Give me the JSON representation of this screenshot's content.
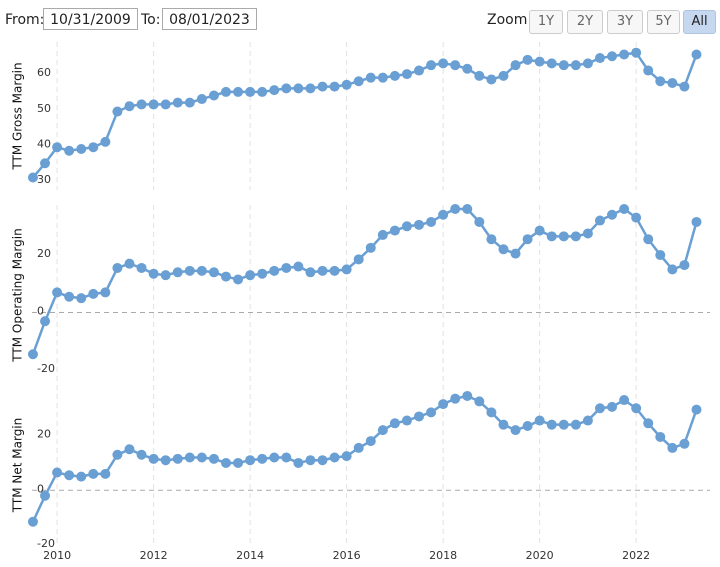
{
  "controls": {
    "from_label": "From:",
    "from": "10/31/2009",
    "to_label": "To:",
    "to": "08/01/2023",
    "zoom_label": "Zoom:",
    "zoom_buttons": [
      "1Y",
      "2Y",
      "3Y",
      "5Y",
      "All"
    ],
    "active": "All"
  },
  "chart_data": [
    {
      "type": "line",
      "ylabel": "TTM Gross Margin",
      "color": "#6a9fd4",
      "x": [
        2009.5,
        2009.75,
        2010,
        2010.25,
        2010.5,
        2010.75,
        2011,
        2011.25,
        2011.5,
        2011.75,
        2012,
        2012.25,
        2012.5,
        2012.75,
        2013,
        2013.25,
        2013.5,
        2013.75,
        2014,
        2014.25,
        2014.5,
        2014.75,
        2015,
        2015.25,
        2015.5,
        2015.75,
        2016,
        2016.25,
        2016.5,
        2016.75,
        2017,
        2017.25,
        2017.5,
        2017.75,
        2018,
        2018.25,
        2018.5,
        2018.75,
        2019,
        2019.25,
        2019.5,
        2019.75,
        2020,
        2020.25,
        2020.5,
        2020.75,
        2021,
        2021.25,
        2021.5,
        2021.75,
        2022,
        2022.25,
        2022.5,
        2022.75,
        2023,
        2023.25
      ],
      "values": [
        31,
        35,
        39.5,
        38.5,
        39,
        39.5,
        41,
        49.5,
        51,
        51.5,
        51.5,
        51.5,
        52,
        52,
        53,
        54,
        55,
        55,
        55,
        55,
        55.5,
        56,
        56,
        56,
        56.5,
        56.5,
        57,
        58,
        59,
        59,
        59.5,
        60,
        61,
        62.5,
        63,
        62.5,
        61.5,
        59.5,
        58.5,
        59.5,
        62.5,
        64,
        63.5,
        63,
        62.5,
        62.5,
        63,
        64.5,
        65,
        65.5,
        66,
        61,
        58,
        57.5,
        56.5,
        65.5
      ],
      "xlim": [
        2009.48,
        2023.53
      ],
      "xticks": [
        2010,
        2012,
        2014,
        2016,
        2018,
        2020,
        2022
      ],
      "ylim": [
        27.5,
        69
      ],
      "yticks": [
        30,
        40,
        50,
        60
      ]
    },
    {
      "type": "line",
      "ylabel": "TTM Operating Margin",
      "color": "#6a9fd4",
      "x": [
        2009.5,
        2009.75,
        2010,
        2010.25,
        2010.5,
        2010.75,
        2011,
        2011.25,
        2011.5,
        2011.75,
        2012,
        2012.25,
        2012.5,
        2012.75,
        2013,
        2013.25,
        2013.5,
        2013.75,
        2014,
        2014.25,
        2014.5,
        2014.75,
        2015,
        2015.25,
        2015.5,
        2015.75,
        2016,
        2016.25,
        2016.5,
        2016.75,
        2017,
        2017.25,
        2017.5,
        2017.75,
        2018,
        2018.25,
        2018.5,
        2018.75,
        2019,
        2019.25,
        2019.5,
        2019.75,
        2020,
        2020.25,
        2020.5,
        2020.75,
        2021,
        2021.25,
        2021.5,
        2021.75,
        2022,
        2022.25,
        2022.5,
        2022.75,
        2023,
        2023.25
      ],
      "values": [
        -14.5,
        -3,
        7,
        5.5,
        5,
        6.5,
        7,
        15.5,
        17,
        15.5,
        13.5,
        13,
        14,
        14.5,
        14.5,
        14,
        12.5,
        11.5,
        13,
        13.5,
        14.5,
        15.5,
        16,
        14,
        14.5,
        14.5,
        15,
        18.5,
        22.5,
        27,
        28.5,
        30,
        30.5,
        31.5,
        34,
        36,
        36,
        31.5,
        25.5,
        22,
        20.5,
        25.5,
        28.5,
        26.5,
        26.5,
        26.5,
        27.5,
        32,
        34,
        36,
        33,
        25.5,
        20,
        15,
        16.5,
        31.5
      ],
      "xlim": [
        2009.48,
        2023.53
      ],
      "xticks": [
        2010,
        2012,
        2014,
        2016,
        2018,
        2020,
        2022
      ],
      "ylim": [
        -25.2,
        37.4
      ],
      "yticks": [
        -20,
        0,
        20
      ]
    },
    {
      "type": "line",
      "ylabel": "TTM Net Margin",
      "color": "#6a9fd4",
      "x": [
        2009.5,
        2009.75,
        2010,
        2010.25,
        2010.5,
        2010.75,
        2011,
        2011.25,
        2011.5,
        2011.75,
        2012,
        2012.25,
        2012.5,
        2012.75,
        2013,
        2013.25,
        2013.5,
        2013.75,
        2014,
        2014.25,
        2014.5,
        2014.75,
        2015,
        2015.25,
        2015.5,
        2015.75,
        2016,
        2016.25,
        2016.5,
        2016.75,
        2017,
        2017.25,
        2017.5,
        2017.75,
        2018,
        2018.25,
        2018.5,
        2018.75,
        2019,
        2019.25,
        2019.5,
        2019.75,
        2020,
        2020.25,
        2020.5,
        2020.75,
        2021,
        2021.25,
        2021.5,
        2021.75,
        2022,
        2022.25,
        2022.5,
        2022.75,
        2023,
        2023.25
      ],
      "values": [
        -11.5,
        -2,
        6.5,
        5.5,
        5,
        6,
        6,
        13,
        15,
        13,
        11.5,
        11,
        11.5,
        12,
        12,
        11.5,
        10,
        10,
        11,
        11.5,
        12,
        12,
        10,
        11,
        11,
        12,
        12.5,
        15.5,
        18,
        22,
        24.5,
        25.5,
        27,
        28.5,
        31.5,
        33.5,
        34.5,
        32.5,
        28.5,
        24,
        22,
        23.5,
        25.5,
        24,
        24,
        24,
        25.5,
        30,
        30.5,
        33,
        30,
        24.5,
        19.5,
        15.5,
        17,
        29.5
      ],
      "xlim": [
        2009.48,
        2023.53
      ],
      "xticks": [
        2010,
        2012,
        2014,
        2016,
        2018,
        2020,
        2022
      ],
      "ylim": [
        -20,
        38.5
      ],
      "yticks": [
        -20,
        0,
        20
      ]
    }
  ]
}
